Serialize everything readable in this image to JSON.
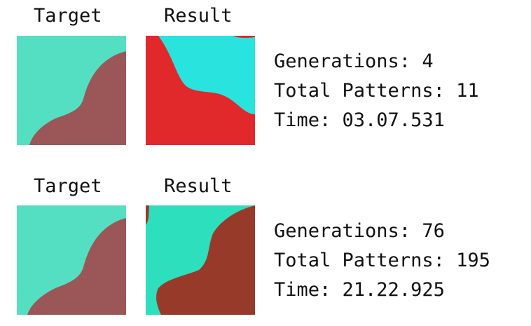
{
  "colors": {
    "target_top": "#54dfc2",
    "target_bottom": "#9b5757",
    "result1_top": "#29e3df",
    "result1_bottom": "#e1292c",
    "result2_top": "#2ddfbc",
    "result2_bottom": "#983a2a"
  },
  "rows": [
    {
      "target_label": "Target",
      "result_label": "Result",
      "generations": "Generations: 4",
      "total_patterns": "Total Patterns: 11",
      "time": "Time: 03.07.531"
    },
    {
      "target_label": "Target",
      "result_label": "Result",
      "generations": "Generations: 76",
      "total_patterns": "Total Patterns: 195",
      "time": "Time: 21.22.925"
    }
  ]
}
